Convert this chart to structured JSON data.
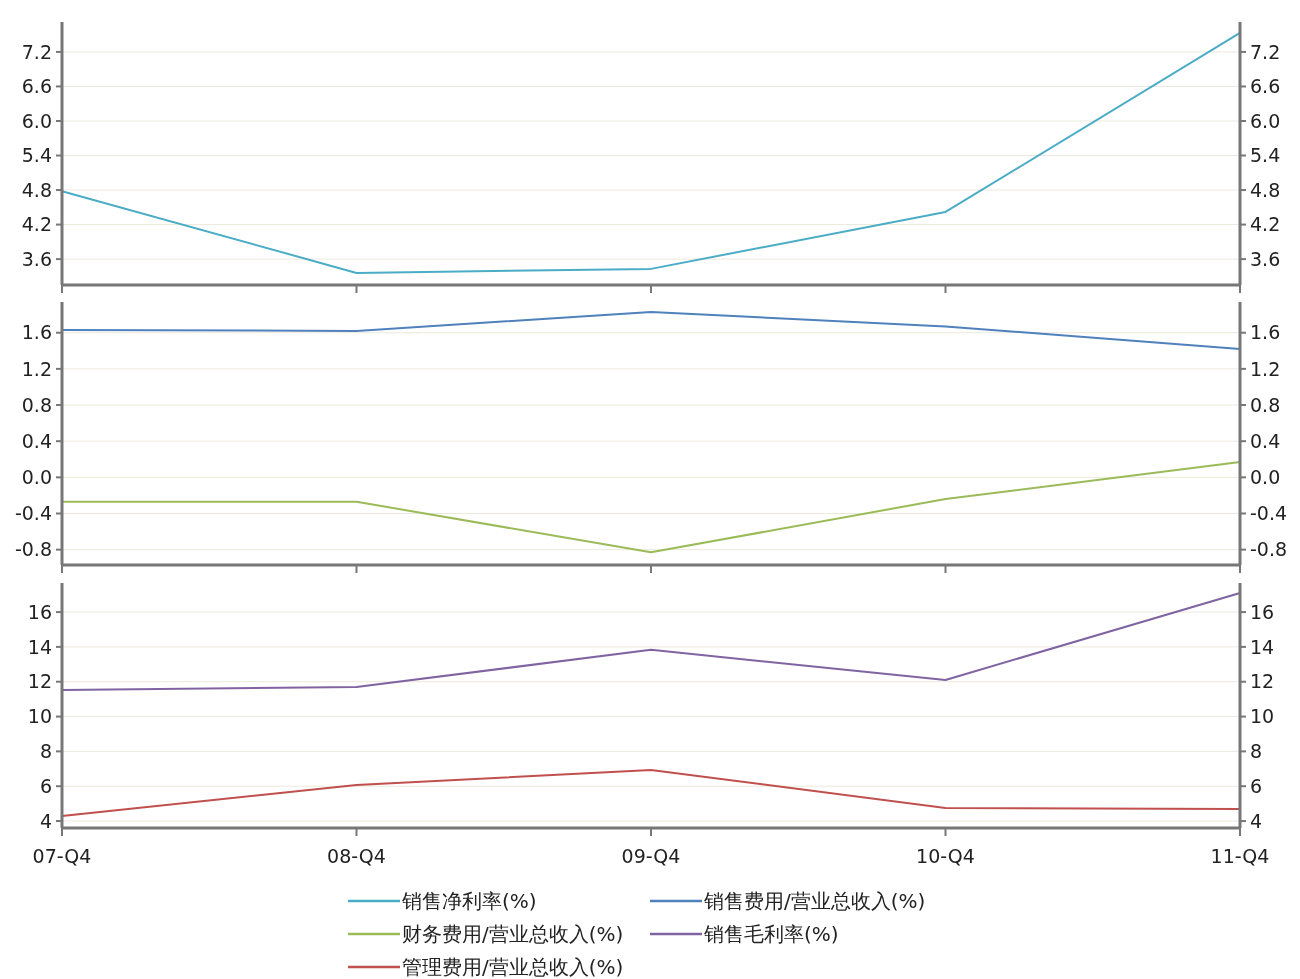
{
  "chart_data": [
    {
      "type": "line",
      "categories": [
        null,
        null,
        null,
        null,
        null
      ],
      "ylim": [
        3.15,
        7.72
      ],
      "yticks": [
        3.6,
        4.2,
        4.8,
        5.4,
        {
          "value": 6,
          "label": "6.0"
        },
        6.6,
        7.2
      ],
      "y2lim": [
        3.15,
        7.72
      ],
      "y2ticks": [
        3.6,
        4.2,
        4.8,
        5.4,
        {
          "value": 6,
          "label": "6.0"
        },
        6.6,
        7.2
      ],
      "grid": "y",
      "tick_labels": "y",
      "legend": "bottom",
      "series": [
        {
          "name": "销售净利率(%)",
          "color": "#4bacc6",
          "values": [
            4.78,
            3.36,
            3.43,
            4.42,
            7.53
          ]
        }
      ]
    },
    {
      "type": "line",
      "categories": [
        null,
        null,
        null,
        null,
        null
      ],
      "ylim": [
        -0.97,
        1.94
      ],
      "yticks": [
        -0.8,
        -0.4,
        {
          "value": 0,
          "label": "0.0"
        },
        0.4,
        0.8,
        1.2,
        1.6
      ],
      "y2lim": [
        -0.97,
        1.94
      ],
      "y2ticks": [
        -0.8,
        -0.4,
        {
          "value": 0,
          "label": "0.0"
        },
        0.4,
        0.8,
        1.2,
        1.6
      ],
      "grid": "y",
      "tick_labels": "y",
      "legend": "bottom",
      "series": [
        {
          "name": "销售费用/营业总收入(%)",
          "color": "#4f81bd",
          "values": [
            1.63,
            1.62,
            1.83,
            1.67,
            1.42
          ]
        },
        {
          "name": "财务费用/营业总收入(%)",
          "color": "#9bbb59",
          "values": [
            -0.27,
            -0.27,
            -0.83,
            -0.24,
            0.17
          ]
        }
      ]
    },
    {
      "type": "line",
      "categories": [
        "07-Q4",
        "08-Q4",
        "09-Q4",
        "10-Q4",
        "11-Q4"
      ],
      "ylim": [
        3.6,
        17.67
      ],
      "yticks": [
        4,
        6,
        8,
        10,
        12,
        14,
        16
      ],
      "y2lim": [
        3.6,
        17.67
      ],
      "y2ticks": [
        4,
        6,
        8,
        10,
        12,
        14,
        16
      ],
      "grid": "y",
      "legend": "bottom",
      "series": [
        {
          "name": "管理费用/营业总收入(%)",
          "color": "#c0504d",
          "values": [
            4.29,
            6.07,
            6.93,
            4.75,
            4.69
          ]
        },
        {
          "name": "销售毛利率(%)",
          "color": "#8064a2",
          "values": [
            11.53,
            11.7,
            13.83,
            12.1,
            17.1
          ]
        }
      ]
    }
  ]
}
